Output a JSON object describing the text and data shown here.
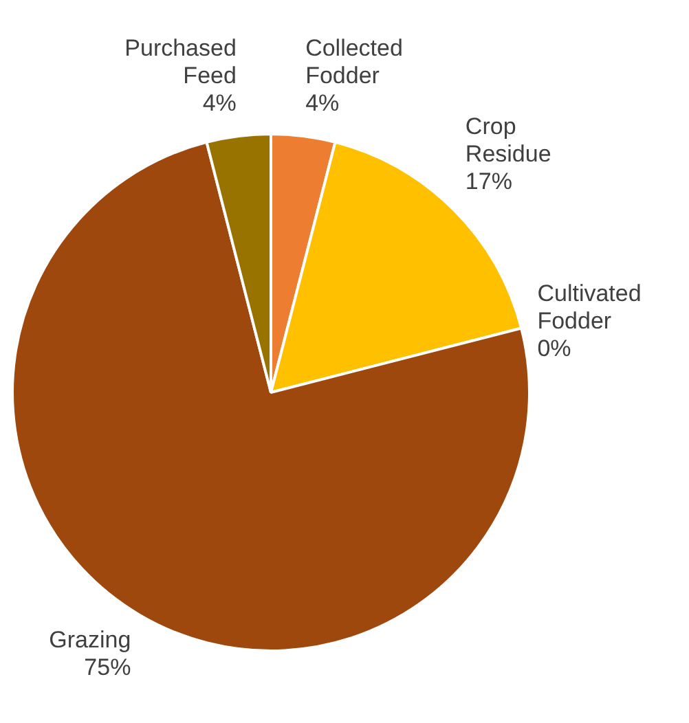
{
  "chart_data": {
    "type": "pie",
    "categories": [
      "Collected Fodder",
      "Crop Residue",
      "Cultivated Fodder",
      "Grazing",
      "Purchased Feed"
    ],
    "values": [
      4,
      17,
      0,
      75,
      4
    ],
    "colors": [
      "#ed7d31",
      "#ffc000",
      "#a5a5a5",
      "#9e480e",
      "#997300"
    ],
    "value_labels": [
      "4%",
      "17%",
      "0%",
      "75%",
      "4%"
    ],
    "legend": false
  }
}
